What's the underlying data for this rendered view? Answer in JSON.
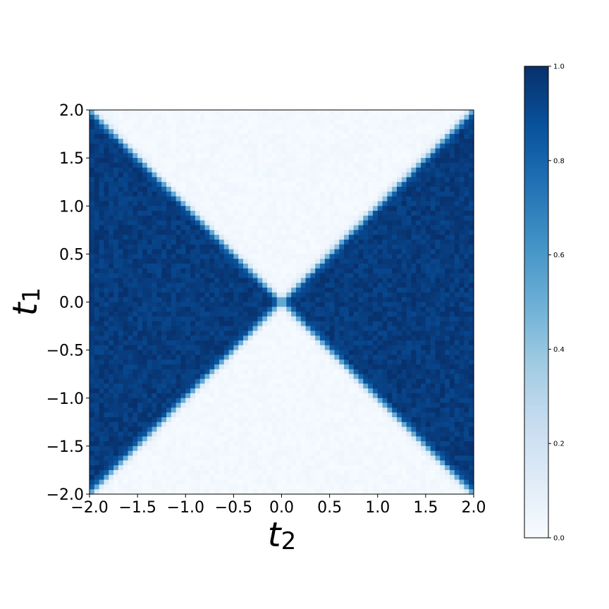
{
  "chart_data": {
    "type": "heatmap",
    "title": "",
    "xlabel": {
      "base": "t",
      "sub": "2"
    },
    "ylabel": {
      "base": "t",
      "sub": "1"
    },
    "xlim": [
      -2.0,
      2.0
    ],
    "ylim": [
      -2.0,
      2.0
    ],
    "x_ticks": [
      -2.0,
      -1.5,
      -1.0,
      -0.5,
      0.0,
      0.5,
      1.0,
      1.5,
      2.0
    ],
    "y_ticks": [
      -2.0,
      -1.5,
      -1.0,
      -0.5,
      0.0,
      0.5,
      1.0,
      1.5,
      2.0
    ],
    "x_tick_labels": [
      "−2.0",
      "−1.5",
      "−1.0",
      "−0.5",
      "0.0",
      "0.5",
      "1.0",
      "1.5",
      "2.0"
    ],
    "y_tick_labels": [
      "−2.0",
      "−1.5",
      "−1.0",
      "−0.5",
      "0.0",
      "0.5",
      "1.0",
      "1.5",
      "2.0"
    ],
    "grid": false,
    "grid_resolution": 80,
    "pattern": "value ≈ 1 where |t2| > |t1|, ≈ 0 where |t1| > |t2|; sharp transition along the diagonals |t1| = |t2|",
    "colormap": "Blues",
    "colorbar": {
      "range": [
        0.0,
        1.0
      ],
      "ticks": [
        0.0,
        0.2,
        0.4,
        0.6,
        0.8,
        1.0
      ],
      "tick_labels": [
        "0.0",
        "0.2",
        "0.4",
        "0.6",
        "0.8",
        "1.0"
      ],
      "placement": "right"
    },
    "colors": {
      "low": "#f7fbff",
      "high": "#08306b"
    }
  }
}
